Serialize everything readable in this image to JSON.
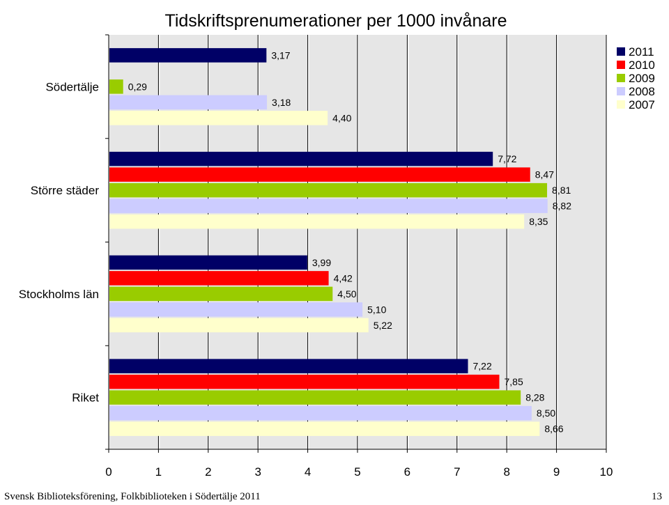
{
  "chart_data": {
    "type": "bar",
    "orientation": "horizontal",
    "title": "Tidskriftsprenumerationer per 1000 invånare",
    "categories": [
      "Södertälje",
      "Större städer",
      "Stockholms län",
      "Riket"
    ],
    "series": [
      {
        "name": "2011",
        "color": "#000066",
        "values": [
          3.17,
          7.72,
          3.99,
          7.22
        ],
        "labels": [
          "3,17",
          "7,72",
          "3,99",
          "7,22"
        ]
      },
      {
        "name": "2010",
        "color": "#ff0000",
        "values": [
          null,
          8.47,
          4.42,
          7.85
        ],
        "labels": [
          "",
          "8,47",
          "4,42",
          "7,85"
        ]
      },
      {
        "name": "2009",
        "color": "#99cc00",
        "values": [
          0.29,
          8.81,
          4.5,
          8.28
        ],
        "labels": [
          "0,29",
          "8,81",
          "4,50",
          "8,28"
        ]
      },
      {
        "name": "2008",
        "color": "#ccccff",
        "values": [
          3.18,
          8.82,
          5.1,
          8.5
        ],
        "labels": [
          "3,18",
          "8,82",
          "5,10",
          "8,50"
        ]
      },
      {
        "name": "2007",
        "color": "#ffffcc",
        "values": [
          4.4,
          8.35,
          5.22,
          8.66
        ],
        "labels": [
          "4,40",
          "8,35",
          "5,22",
          "8,66"
        ]
      }
    ],
    "xlim": [
      0,
      10
    ],
    "xticks": [
      "0",
      "1",
      "2",
      "3",
      "4",
      "5",
      "6",
      "7",
      "8",
      "9",
      "10"
    ],
    "grid": true,
    "legend_position": "top-right"
  },
  "footer": {
    "text": "Svensk Biblioteksförening, Folkbiblioteken i Södertälje 2011",
    "page": "13"
  }
}
